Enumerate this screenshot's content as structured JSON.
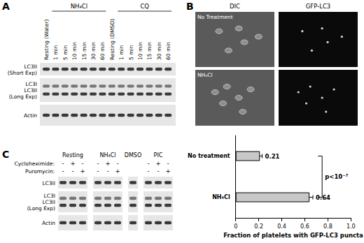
{
  "figure": {
    "A": {
      "panel": "A",
      "lanes": [
        {
          "lane": "Resting (Water)"
        },
        {
          "group": "NH₄Cl",
          "lanes": [
            "1 min",
            "5 min",
            "10 min",
            "15 min",
            "30 min",
            "60 min"
          ]
        },
        {
          "lane": "Resting (DMSO)"
        },
        {
          "group": "CQ",
          "lanes": [
            "1 min",
            "5 min",
            "10 min",
            "15 min",
            "30 min",
            "60 min"
          ]
        }
      ],
      "rows": [
        [
          "LC3II",
          "(Short Exp)"
        ],
        [
          "LC3I",
          "LC3II",
          "(Long Exp)"
        ],
        [
          "Actin"
        ]
      ]
    },
    "B": {
      "panel": "B",
      "columns": [
        "DIC",
        "GFP-LC3"
      ],
      "rows": [
        "No Treatment",
        "NH₄Cl"
      ]
    },
    "C": {
      "panel": "C",
      "treatments": [
        "Cycloheximide:",
        "Puromycin:"
      ],
      "groups": [
        {
          "label": "Resting",
          "signs": [
            [
              "-",
              "-"
            ],
            [
              "+",
              "-"
            ],
            [
              "-",
              "+"
            ]
          ]
        },
        {
          "label": "NH₄Cl",
          "signs": [
            [
              "-",
              "-"
            ],
            [
              "+",
              "-"
            ],
            [
              "-",
              "+"
            ]
          ]
        },
        {
          "label": "DMSO",
          "signs": [
            [
              null,
              null
            ]
          ]
        },
        {
          "label": "PIC",
          "signs": [
            [
              "-",
              "-"
            ],
            [
              "+",
              "-"
            ],
            [
              "-",
              "+"
            ]
          ]
        }
      ],
      "rows": [
        [
          "LC3II"
        ],
        [
          "LC3I",
          "LC3II",
          "(Long Exp)"
        ],
        [
          "Actin"
        ]
      ]
    }
  },
  "chart_data": {
    "type": "bar",
    "orientation": "horizontal",
    "categories": [
      "No treatment",
      "NH₄Cl"
    ],
    "values": [
      0.21,
      0.64
    ],
    "errors": [
      0.02,
      0.03
    ],
    "color": "#c8c8c8",
    "xlabel": "Fraction of platelets with GFP-LC3 puncta",
    "xlim": [
      0,
      1
    ],
    "xticks": [
      0,
      0.2,
      0.4,
      0.6,
      0.8,
      {
        "value": 1,
        "label": "1.0"
      }
    ],
    "data_labels": true,
    "grid": false,
    "annotations": [
      {
        "text": "p<10⁻⁷"
      }
    ]
  }
}
